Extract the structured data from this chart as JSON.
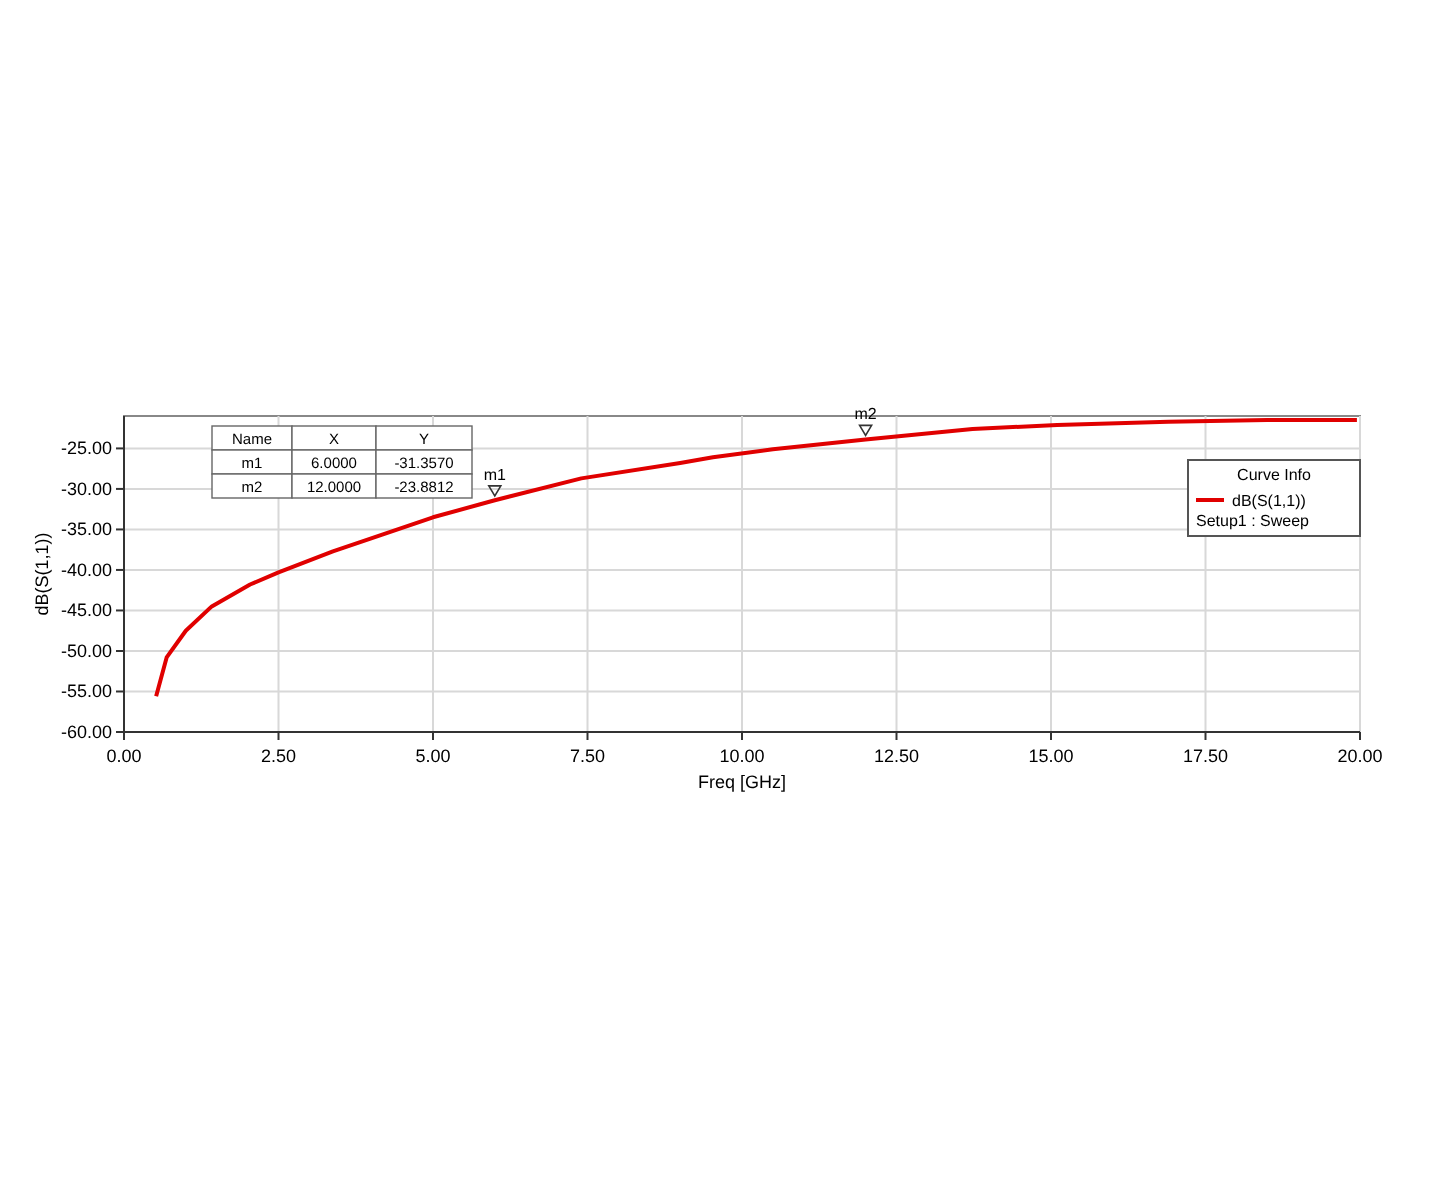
{
  "chart_data": {
    "type": "line",
    "xlabel": "Freq [GHz]",
    "ylabel": "dB(S(1,1))",
    "legend_title": "Curve Info",
    "legend": "top right",
    "grid": true,
    "marker": "none",
    "line_style": "solid",
    "xlim": [
      0,
      20
    ],
    "ylim": [
      -60,
      -21
    ],
    "xticks": [
      {
        "value": 0,
        "label": "0.00"
      },
      {
        "value": 2.5,
        "label": "2.50"
      },
      {
        "value": 5,
        "label": "5.00"
      },
      {
        "value": 7.5,
        "label": "7.50"
      },
      {
        "value": 10,
        "label": "10.00"
      },
      {
        "value": 12.5,
        "label": "12.50"
      },
      {
        "value": 15,
        "label": "15.00"
      },
      {
        "value": 17.5,
        "label": "17.50"
      },
      {
        "value": 20,
        "label": "20.00"
      }
    ],
    "yticks": [
      {
        "value": -60,
        "label": "-60.00"
      },
      {
        "value": -55,
        "label": "-55.00"
      },
      {
        "value": -50,
        "label": "-50.00"
      },
      {
        "value": -45,
        "label": "-45.00"
      },
      {
        "value": -40,
        "label": "-40.00"
      },
      {
        "value": -35,
        "label": "-35.00"
      },
      {
        "value": -30,
        "label": "-30.00"
      },
      {
        "value": -25,
        "label": "-25.00"
      }
    ],
    "series": [
      {
        "name": "dB(S(1,1))",
        "color": "#e00000",
        "x": [
          0.52,
          0.69,
          1.0,
          1.42,
          2.04,
          2.5,
          3.38,
          4.0,
          5.0,
          6.0,
          7.4,
          9.0,
          9.53,
          10.5,
          12.0,
          13.73,
          15.1,
          16.9,
          18.5,
          19.95
        ],
        "values": [
          -55.6,
          -50.8,
          -47.5,
          -44.5,
          -41.8,
          -40.3,
          -37.7,
          -36.1,
          -33.5,
          -31.4,
          -28.7,
          -26.8,
          -26.1,
          -25.1,
          -23.9,
          -22.6,
          -22.1,
          -21.7,
          -21.5,
          -21.5
        ]
      }
    ],
    "annotations": [
      {
        "text": "m1",
        "x": 6,
        "y": -31.357
      },
      {
        "text": "m2",
        "x": 12,
        "y": -23.8812
      },
      "Setup1 : Sweep",
      "Name",
      "X",
      "Y",
      "m1",
      "6.0000",
      "-31.3570",
      "m2",
      "12.0000",
      "-23.8812"
    ]
  }
}
